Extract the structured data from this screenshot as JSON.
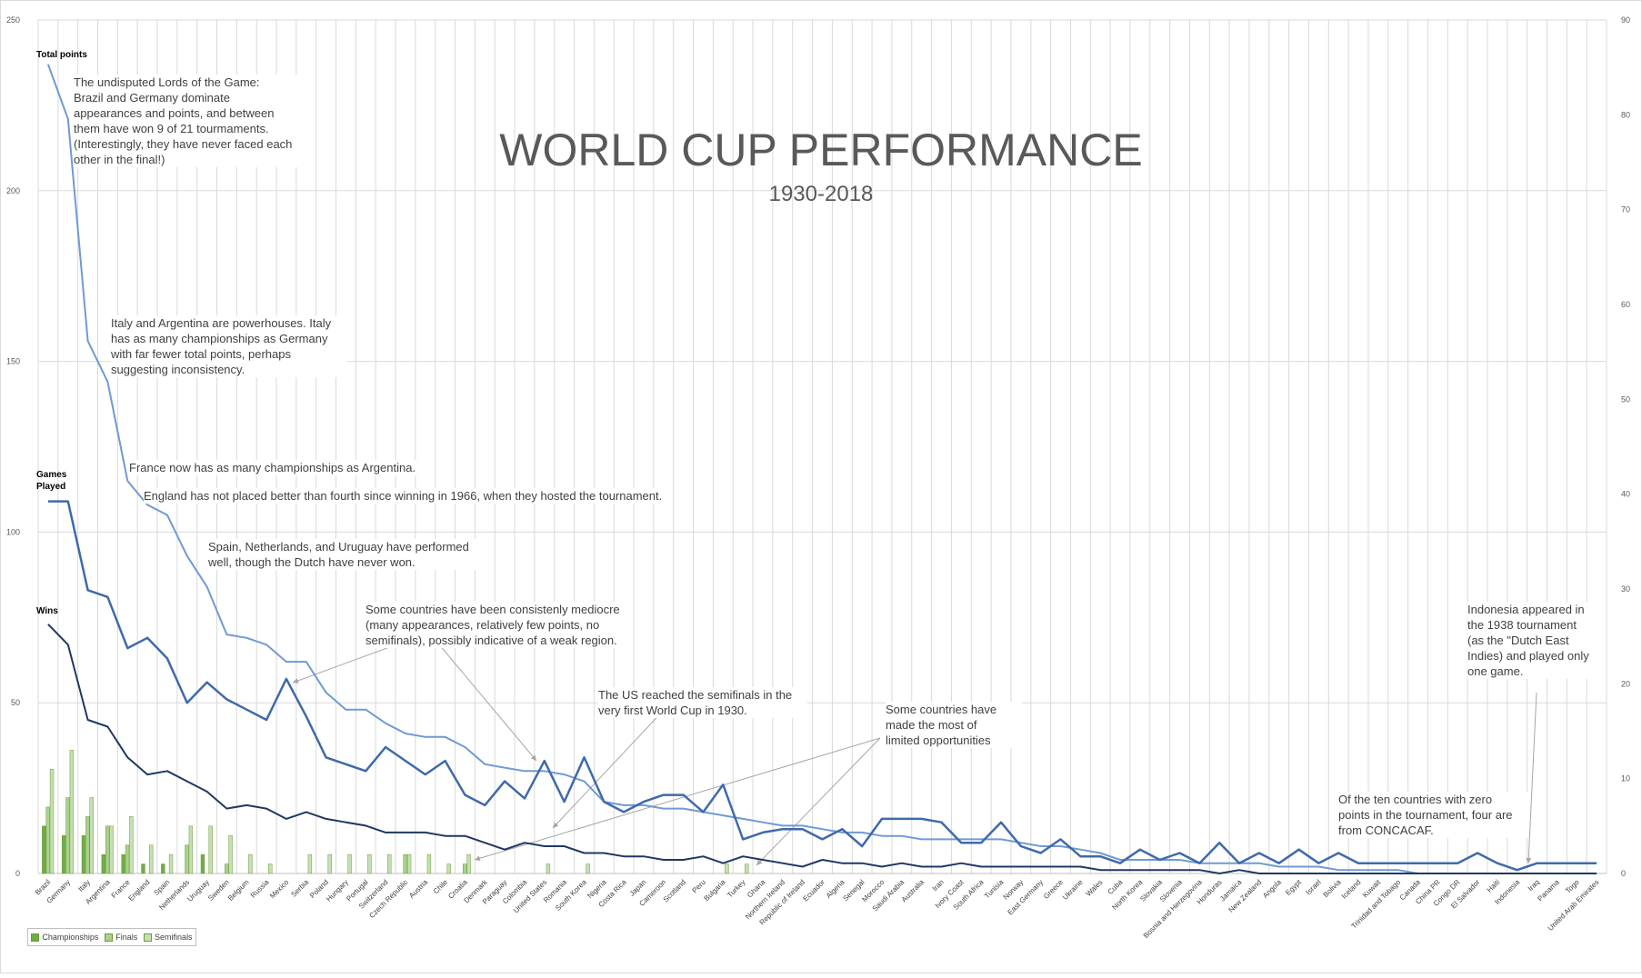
{
  "title": "WORLD CUP PERFORMANCE",
  "subtitle": "1930-2018",
  "colors": {
    "total_points": "#6f9ad4",
    "games_played": "#3f6aaa",
    "wins": "#1f3864",
    "championships": "#70ad47",
    "finals": "#a9d18e",
    "semifinals": "#c5e0b4",
    "grid": "#d9d9d9"
  },
  "series_labels": {
    "total_points": "Total points",
    "games_played": "Games\nPlayed",
    "wins": "Wins"
  },
  "legend": [
    {
      "label": "Championships",
      "color": "#70ad47"
    },
    {
      "label": "Finals",
      "color": "#a9d18e"
    },
    {
      "label": "Semifinals",
      "color": "#c5e0b4"
    }
  ],
  "annotations": [
    {
      "text": "The undisputed Lords of the Game:\nBrazil and Germany dominate\nappearances and points, and between\nthem have won 9 of 21 tourmaments.\n(Interestingly, they have never faced each\nother in the final!)"
    },
    {
      "text": "Italy and Argentina are powerhouses. Italy\nhas as many championships as Germany\nwith far fewer total points, perhaps\nsuggesting inconsistency."
    },
    {
      "text": "France now has as many championships as Argentina."
    },
    {
      "text": "England has not placed better than fourth since winning in 1966, when they hosted the tournament."
    },
    {
      "text": "Spain, Netherlands, and Uruguay have performed\nwell, though the Dutch have never won."
    },
    {
      "text": "Some countries have been consistenly mediocre\n(many appearances, relatively few points, no\nsemifinals), possibly indicative of a weak region."
    },
    {
      "text": "The US reached the semifinals in the\nvery first World Cup in 1930."
    },
    {
      "text": "Some countries have\nmade the most of\nlimited opportunities"
    },
    {
      "text": "Indonesia appeared in\nthe 1938 tournament\n(as the \"Dutch East\nIndies) and played only\none game."
    },
    {
      "text": "Of the ten countries with zero\npoints in the tournament, four are\nfrom CONCACAF."
    }
  ],
  "chart_data": {
    "type": "line",
    "title": "WORLD CUP PERFORMANCE",
    "subtitle": "1930-2018",
    "xlabel": "",
    "ylabel": "",
    "ylim": [
      0,
      250
    ],
    "y2lim": [
      0,
      90
    ],
    "y_ticks": [
      0,
      50,
      100,
      150,
      200,
      250
    ],
    "y2_ticks": [
      0,
      10,
      20,
      30,
      40,
      50,
      60,
      70,
      80,
      90
    ],
    "grid": true,
    "legend_position": "bottom-left",
    "categories": [
      "Brazil",
      "Germany",
      "Italy",
      "Argentina",
      "France",
      "England",
      "Spain",
      "Netherlands",
      "Uruguay",
      "Sweden",
      "Belgium",
      "Russia",
      "Mexico",
      "Serbia",
      "Poland",
      "Hungary",
      "Portugal",
      "Switzerland",
      "Czech Republic",
      "Austria",
      "Chile",
      "Croatia",
      "Denmark",
      "Paraguay",
      "Colombia",
      "United States",
      "Romania",
      "South Korea",
      "Nigeria",
      "Costa Rica",
      "Japan",
      "Cameroon",
      "Scotland",
      "Peru",
      "Bulgaria",
      "Turkey",
      "Ghana",
      "Northern Ireland",
      "Republic of Ireland",
      "Ecuador",
      "Algeria",
      "Senegal",
      "Morocco",
      "Saudi Arabia",
      "Australia",
      "Iran",
      "Ivory Coast",
      "South Africa",
      "Tunisia",
      "Norway",
      "East Germany",
      "Greece",
      "Ukraine",
      "Wales",
      "Cuba",
      "North Korea",
      "Slovakia",
      "Slovenia",
      "Bosnia and Herzegovina",
      "Honduras",
      "Jamaica",
      "New Zealand",
      "Angola",
      "Egypt",
      "Israel",
      "Bolivia",
      "Iceland",
      "Kuwait",
      "Trinidad and Tobago",
      "Canada",
      "China PR",
      "Congo DR",
      "El Salvador",
      "Haiti",
      "Indonesia",
      "Iraq",
      "Panama",
      "Togo",
      "United Arab Emirates"
    ],
    "series": [
      {
        "name": "Total points",
        "axis": "left",
        "values": [
          237,
          221,
          156,
          144,
          115,
          108,
          105,
          93,
          84,
          70,
          69,
          67,
          62,
          62,
          53,
          48,
          48,
          44,
          41,
          40,
          40,
          37,
          32,
          31,
          30,
          30,
          29,
          27,
          21,
          20,
          20,
          19,
          19,
          18,
          17,
          16,
          15,
          14,
          14,
          13,
          12,
          12,
          11,
          11,
          10,
          10,
          10,
          10,
          10,
          9,
          8,
          8,
          7,
          6,
          4,
          4,
          4,
          4,
          3,
          3,
          3,
          3,
          2,
          2,
          2,
          1,
          1,
          1,
          1,
          0,
          0,
          0,
          0,
          0,
          0,
          0,
          0,
          0,
          0
        ]
      },
      {
        "name": "Games played",
        "axis": "left",
        "values": [
          109,
          109,
          83,
          81,
          66,
          69,
          63,
          50,
          56,
          51,
          48,
          45,
          57,
          46,
          34,
          32,
          30,
          37,
          33,
          29,
          33,
          23,
          20,
          27,
          22,
          33,
          21,
          34,
          21,
          18,
          21,
          23,
          23,
          18,
          26,
          10,
          12,
          13,
          13,
          10,
          13,
          8,
          16,
          16,
          16,
          15,
          9,
          9,
          15,
          8,
          6,
          10,
          5,
          5,
          3,
          7,
          4,
          6,
          3,
          9,
          3,
          6,
          3,
          7,
          3,
          6,
          3,
          3,
          3,
          3,
          3,
          3,
          6,
          3,
          1,
          3,
          3,
          3,
          3
        ]
      },
      {
        "name": "Wins",
        "axis": "left",
        "values": [
          73,
          67,
          45,
          43,
          34,
          29,
          30,
          27,
          24,
          19,
          20,
          19,
          16,
          18,
          16,
          15,
          14,
          12,
          12,
          12,
          11,
          11,
          9,
          7,
          9,
          8,
          8,
          6,
          6,
          5,
          5,
          4,
          4,
          5,
          3,
          5,
          4,
          3,
          2,
          4,
          3,
          3,
          2,
          3,
          2,
          2,
          3,
          2,
          2,
          2,
          2,
          2,
          2,
          1,
          1,
          1,
          1,
          1,
          1,
          0,
          1,
          0,
          0,
          0,
          0,
          0,
          0,
          0,
          0,
          0,
          0,
          0,
          0,
          0,
          0,
          0,
          0,
          0,
          0
        ]
      },
      {
        "name": "Championships",
        "axis": "right",
        "type": "bar",
        "values": [
          5,
          4,
          4,
          2,
          2,
          1,
          1,
          0,
          2,
          0,
          0,
          0,
          0,
          0,
          0,
          0,
          0,
          0,
          0,
          0,
          0,
          0,
          0,
          0,
          0,
          0,
          0,
          0,
          0,
          0,
          0,
          0,
          0,
          0,
          0,
          0,
          0,
          0,
          0,
          0,
          0,
          0,
          0,
          0,
          0,
          0,
          0,
          0,
          0,
          0,
          0,
          0,
          0,
          0,
          0,
          0,
          0,
          0,
          0,
          0,
          0,
          0,
          0,
          0,
          0,
          0,
          0,
          0,
          0,
          0,
          0,
          0,
          0,
          0,
          0,
          0,
          0,
          0,
          0
        ]
      },
      {
        "name": "Finals",
        "axis": "right",
        "type": "bar",
        "values": [
          7,
          8,
          6,
          5,
          3,
          0,
          0,
          3,
          0,
          1,
          0,
          0,
          0,
          0,
          0,
          0,
          0,
          0,
          2,
          0,
          0,
          1,
          0,
          0,
          0,
          0,
          0,
          0,
          0,
          0,
          0,
          0,
          0,
          0,
          0,
          0,
          0,
          0,
          0,
          0,
          0,
          0,
          0,
          0,
          0,
          0,
          0,
          0,
          0,
          0,
          0,
          0,
          0,
          0,
          0,
          0,
          0,
          0,
          0,
          0,
          0,
          0,
          0,
          0,
          0,
          0,
          0,
          0,
          0,
          0,
          0,
          0,
          0,
          0,
          0,
          0,
          0,
          0,
          0
        ]
      },
      {
        "name": "Semifinals",
        "axis": "right",
        "type": "bar",
        "values": [
          11,
          13,
          8,
          5,
          6,
          3,
          2,
          5,
          5,
          4,
          2,
          1,
          0,
          2,
          2,
          2,
          2,
          2,
          2,
          2,
          1,
          2,
          0,
          0,
          0,
          1,
          0,
          1,
          0,
          0,
          0,
          0,
          0,
          0,
          1,
          1,
          0,
          0,
          0,
          0,
          0,
          0,
          0,
          0,
          0,
          0,
          0,
          0,
          0,
          0,
          0,
          0,
          0,
          0,
          0,
          0,
          0,
          0,
          0,
          0,
          0,
          0,
          0,
          0,
          0,
          0,
          0,
          0,
          0,
          0,
          0,
          0,
          0,
          0,
          0,
          0,
          0,
          0,
          0
        ]
      }
    ]
  }
}
